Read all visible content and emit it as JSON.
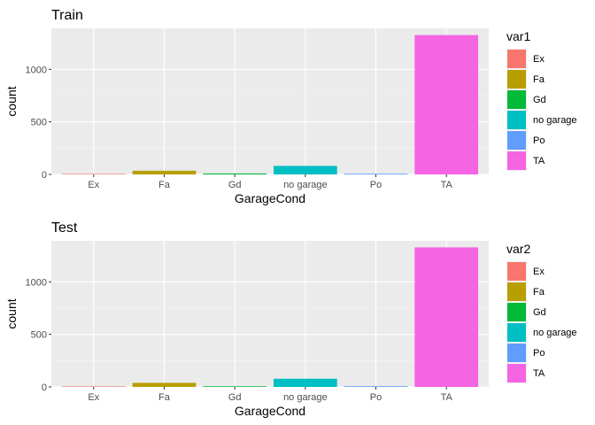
{
  "chart_data": [
    {
      "type": "bar",
      "title": "Train",
      "xlabel": "GarageCond",
      "ylabel": "count",
      "categories": [
        "Ex",
        "Fa",
        "Gd",
        "no garage",
        "Po",
        "TA"
      ],
      "values": [
        3,
        35,
        9,
        81,
        7,
        1326
      ],
      "ylim": [
        0,
        1390
      ],
      "yticks": [
        0,
        500,
        1000
      ],
      "colors": [
        "#F8766D",
        "#B79F00",
        "#00BA38",
        "#00BFC4",
        "#619CFF",
        "#F564E3"
      ],
      "grid": true,
      "legend": {
        "title": "var1",
        "placement": "right",
        "labels": [
          "Ex",
          "Fa",
          "Gd",
          "no garage",
          "Po",
          "TA"
        ]
      }
    },
    {
      "type": "bar",
      "title": "Test",
      "xlabel": "GarageCond",
      "ylabel": "count",
      "categories": [
        "Ex",
        "Fa",
        "Gd",
        "no garage",
        "Po",
        "TA"
      ],
      "values": [
        1,
        39,
        6,
        78,
        7,
        1328
      ],
      "ylim": [
        0,
        1390
      ],
      "yticks": [
        0,
        500,
        1000
      ],
      "colors": [
        "#F8766D",
        "#B79F00",
        "#00BA38",
        "#00BFC4",
        "#619CFF",
        "#F564E3"
      ],
      "grid": true,
      "legend": {
        "title": "var2",
        "placement": "right",
        "labels": [
          "Ex",
          "Fa",
          "Gd",
          "no garage",
          "Po",
          "TA"
        ]
      }
    }
  ]
}
